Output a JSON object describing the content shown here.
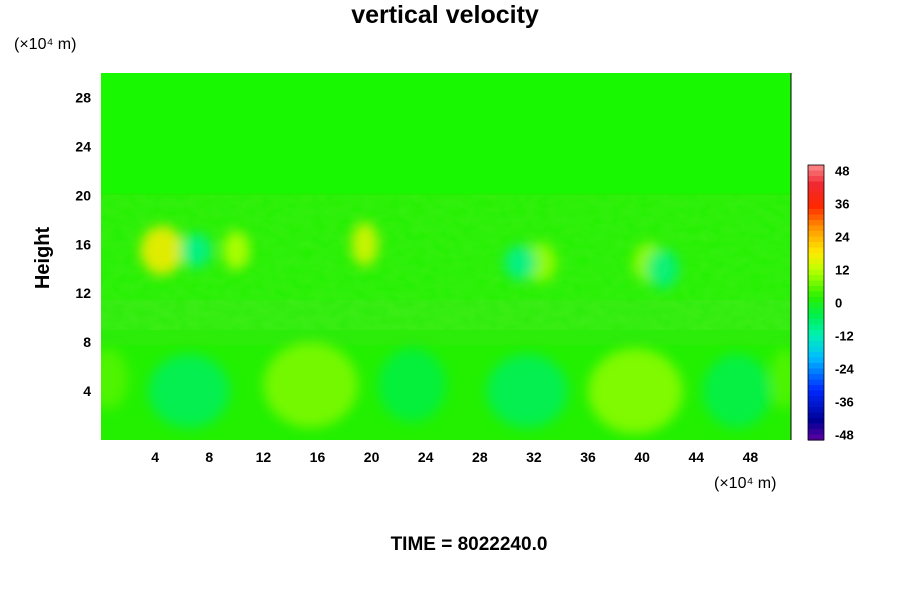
{
  "chart_data": {
    "type": "heatmap",
    "title": "vertical velocity",
    "ylabel": "Height",
    "xlabel": "",
    "x_unit": "(×10⁴ m)",
    "y_unit": "(×10⁴ m)",
    "xlim": [
      0,
      51
    ],
    "ylim": [
      0,
      30
    ],
    "x_ticks": [
      4,
      8,
      12,
      16,
      20,
      24,
      28,
      32,
      36,
      40,
      44,
      48
    ],
    "y_ticks": [
      4,
      8,
      12,
      16,
      20,
      24,
      28
    ],
    "colorbar": {
      "range": [
        -50,
        50
      ],
      "ticks": [
        48,
        36,
        24,
        12,
        0,
        -12,
        -24,
        -36,
        -48
      ]
    },
    "features": [
      {
        "x": 4.5,
        "y": 15.5,
        "value": 18,
        "sx": 1.6,
        "sy": 2.0
      },
      {
        "x": 10.0,
        "y": 15.5,
        "value": 12,
        "sx": 1.0,
        "sy": 1.6
      },
      {
        "x": 19.5,
        "y": 16.0,
        "value": 15,
        "sx": 1.0,
        "sy": 1.8
      },
      {
        "x": 32.5,
        "y": 14.5,
        "value": 10,
        "sx": 1.2,
        "sy": 1.6
      },
      {
        "x": 40.5,
        "y": 14.5,
        "value": 10,
        "sx": 1.2,
        "sy": 1.6
      },
      {
        "x": 7.0,
        "y": 15.5,
        "value": -10,
        "sx": 1.2,
        "sy": 1.4
      },
      {
        "x": 31.0,
        "y": 14.5,
        "value": -10,
        "sx": 1.2,
        "sy": 1.4
      },
      {
        "x": 41.5,
        "y": 14.0,
        "value": -9,
        "sx": 1.2,
        "sy": 1.6
      },
      {
        "x": 15.5,
        "y": 4.5,
        "value": 8,
        "sx": 3.5,
        "sy": 3.5
      },
      {
        "x": 39.5,
        "y": 4.0,
        "value": 9,
        "sx": 3.5,
        "sy": 3.5
      },
      {
        "x": 6.5,
        "y": 4.0,
        "value": -6,
        "sx": 3.0,
        "sy": 3.0
      },
      {
        "x": 31.5,
        "y": 4.0,
        "value": -6,
        "sx": 3.0,
        "sy": 3.0
      },
      {
        "x": 47.0,
        "y": 4.0,
        "value": -5,
        "sx": 2.5,
        "sy": 3.0
      },
      {
        "x": 23.0,
        "y": 4.5,
        "value": -4,
        "sx": 2.5,
        "sy": 3.0
      },
      {
        "x": 0.5,
        "y": 5.0,
        "value": 5,
        "sx": 1.5,
        "sy": 2.5
      },
      {
        "x": 50.5,
        "y": 5.0,
        "value": 5,
        "sx": 1.0,
        "sy": 2.5
      }
    ]
  },
  "footer": {
    "time_label": "TIME = 8022240.0"
  }
}
